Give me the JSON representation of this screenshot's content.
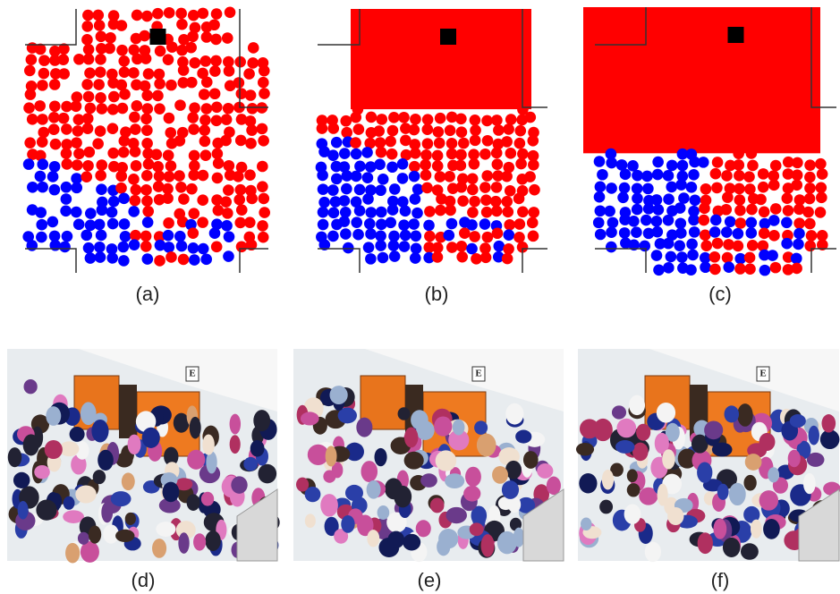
{
  "panels": [
    {
      "label": "(a)"
    },
    {
      "label": "(b)"
    },
    {
      "label": "(c)"
    },
    {
      "label": "(d)",
      "sign": "E"
    },
    {
      "label": "(e)",
      "sign": "E"
    },
    {
      "label": "(f)",
      "sign": "E"
    }
  ]
}
